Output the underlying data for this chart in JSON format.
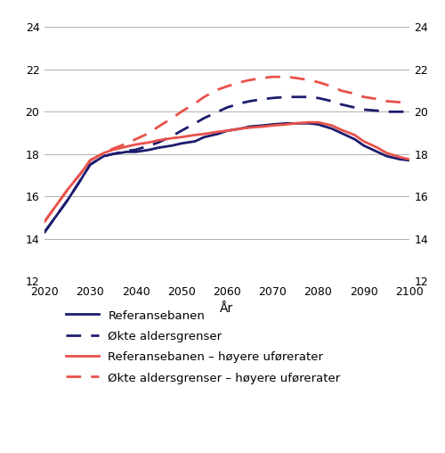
{
  "years": [
    2020,
    2022,
    2025,
    2028,
    2030,
    2033,
    2035,
    2038,
    2040,
    2043,
    2045,
    2048,
    2050,
    2053,
    2055,
    2058,
    2060,
    2063,
    2065,
    2068,
    2070,
    2073,
    2075,
    2078,
    2080,
    2083,
    2085,
    2088,
    2090,
    2093,
    2095,
    2098,
    2100
  ],
  "ref": [
    14.3,
    14.9,
    15.8,
    16.8,
    17.5,
    17.9,
    18.0,
    18.1,
    18.1,
    18.2,
    18.3,
    18.4,
    18.5,
    18.6,
    18.8,
    18.95,
    19.1,
    19.2,
    19.3,
    19.35,
    19.4,
    19.45,
    19.45,
    19.45,
    19.4,
    19.2,
    19.0,
    18.7,
    18.4,
    18.1,
    17.9,
    17.75,
    17.7
  ],
  "okte": [
    14.3,
    14.9,
    15.8,
    16.8,
    17.5,
    17.9,
    18.0,
    18.15,
    18.2,
    18.4,
    18.55,
    18.85,
    19.1,
    19.45,
    19.7,
    20.0,
    20.2,
    20.4,
    20.5,
    20.6,
    20.65,
    20.7,
    20.7,
    20.7,
    20.65,
    20.5,
    20.35,
    20.2,
    20.1,
    20.05,
    20.0,
    20.0,
    20.0
  ],
  "ref_higher": [
    14.8,
    15.4,
    16.3,
    17.1,
    17.7,
    18.05,
    18.2,
    18.35,
    18.45,
    18.55,
    18.65,
    18.75,
    18.8,
    18.9,
    18.95,
    19.05,
    19.1,
    19.2,
    19.25,
    19.3,
    19.35,
    19.4,
    19.45,
    19.5,
    19.5,
    19.35,
    19.15,
    18.9,
    18.6,
    18.3,
    18.05,
    17.85,
    17.75
  ],
  "okte_higher": [
    14.8,
    15.4,
    16.3,
    17.1,
    17.7,
    18.05,
    18.25,
    18.5,
    18.7,
    19.0,
    19.3,
    19.7,
    20.0,
    20.4,
    20.7,
    21.05,
    21.2,
    21.4,
    21.5,
    21.6,
    21.65,
    21.65,
    21.6,
    21.5,
    21.4,
    21.2,
    21.0,
    20.85,
    20.7,
    20.6,
    20.5,
    20.45,
    20.45
  ],
  "color_dark_blue": "#1c1c6e",
  "color_red": "#e8524a",
  "ylim": [
    12,
    24
  ],
  "yticks": [
    12,
    14,
    16,
    18,
    20,
    22,
    24
  ],
  "xlim": [
    2020,
    2100
  ],
  "xticks": [
    2020,
    2030,
    2040,
    2050,
    2060,
    2070,
    2080,
    2090,
    2100
  ],
  "xlabel": "År",
  "legend": [
    "Referansebanen",
    "Økte aldersgrenser",
    "Referansebanen – høyere uførerater",
    "Økte aldersgrenser – høyere uførerater"
  ],
  "background_color": "#ffffff",
  "grid_color": "#b0b0b0",
  "line_width": 2.0,
  "dash_pattern": [
    6,
    4
  ]
}
